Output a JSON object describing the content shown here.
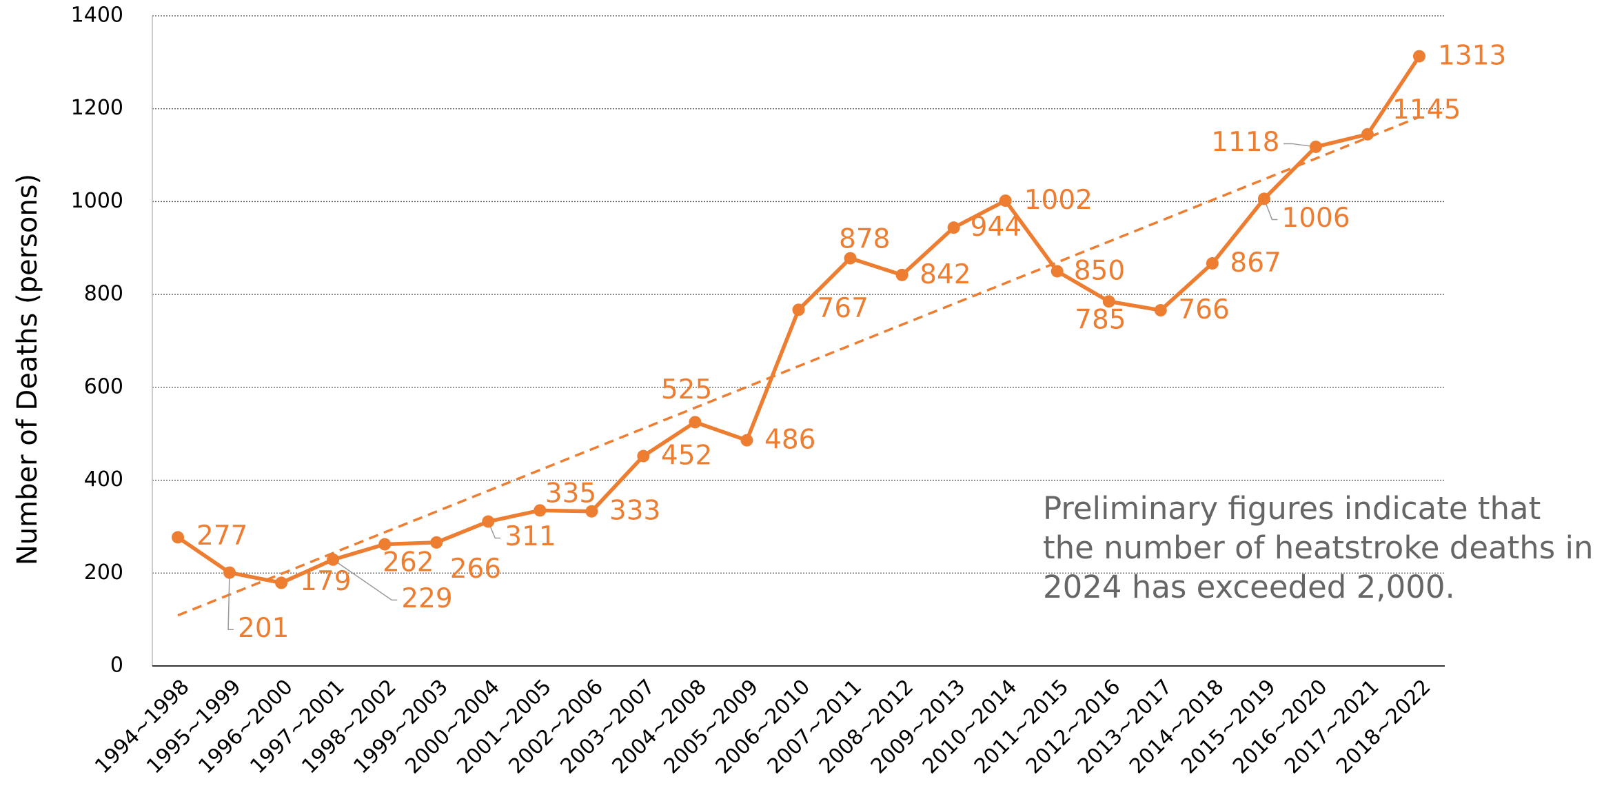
{
  "chart_data": {
    "type": "line",
    "y_label": "Number of Deaths (persons)",
    "categories": [
      "1994~1998",
      "1995~1999",
      "1996~2000",
      "1997~2001",
      "1998~2002",
      "1999~2003",
      "2000~2004",
      "2001~2005",
      "2002~2006",
      "2003~2007",
      "2004~2008",
      "2005~2009",
      "2006~2010",
      "2007~2011",
      "2008~2012",
      "2009~2013",
      "2010~2014",
      "2011~2015",
      "2012~2016",
      "2013~2017",
      "2014~2018",
      "2015~2019",
      "2016~2020",
      "2017~2021",
      "2018~2022"
    ],
    "values": [
      277,
      201,
      179,
      229,
      262,
      266,
      311,
      335,
      333,
      452,
      525,
      486,
      767,
      878,
      842,
      944,
      1002,
      850,
      785,
      766,
      867,
      1006,
      1118,
      1145,
      1313
    ],
    "color": "#ED7D31",
    "trendline": "linear",
    "ylim": [
      0,
      1400
    ],
    "yticks": [
      0,
      200,
      400,
      600,
      800,
      1000,
      1200,
      1400
    ],
    "grid": true,
    "annotation": [
      "Preliminary figures indicate that",
      "the number of heatstroke deaths in",
      "2024 has exceeded 2,000."
    ]
  }
}
